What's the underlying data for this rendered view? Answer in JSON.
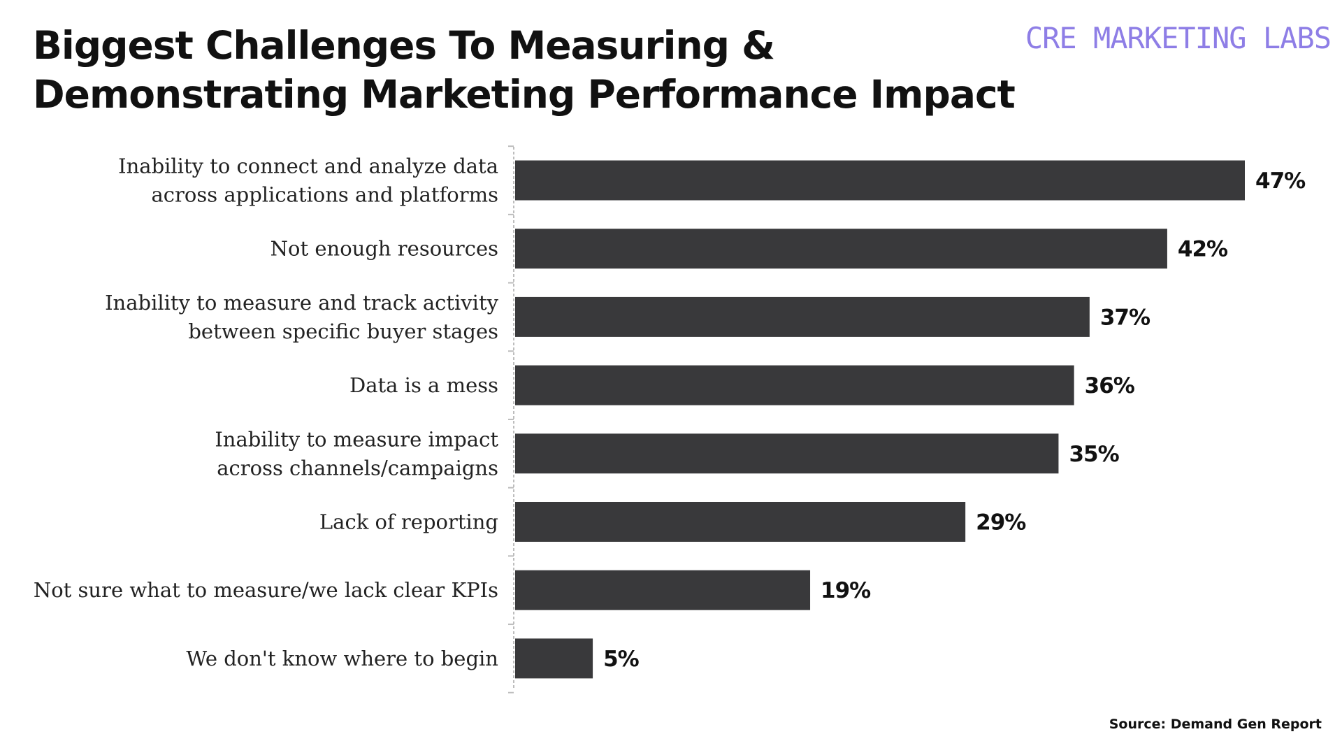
{
  "chart_data": {
    "type": "bar",
    "orientation": "horizontal",
    "title": [
      "Biggest Challenges To Measuring &",
      "Demonstrating Marketing Performance Impact"
    ],
    "categories": [
      [
        "Inability to connect and analyze data",
        "across applications and platforms"
      ],
      [
        "Not enough resources"
      ],
      [
        "Inability to measure and track activity",
        "between specific buyer stages"
      ],
      [
        "Data is a mess"
      ],
      [
        "Inability to measure impact",
        "across channels/campaigns"
      ],
      [
        "Lack of reporting"
      ],
      [
        "Not sure what to measure/we lack clear KPIs"
      ],
      [
        "We don't know where to begin"
      ]
    ],
    "values": [
      47,
      42,
      37,
      36,
      35,
      29,
      19,
      5
    ],
    "value_labels": [
      "47%",
      "42%",
      "37%",
      "36%",
      "35%",
      "29%",
      "19%",
      "5%"
    ],
    "xlabel": "",
    "ylabel": "",
    "xlim": [
      0,
      47
    ],
    "grid": false,
    "legend": "none",
    "bar_color": "#39393b"
  },
  "brand": "CRE MARKETING LABS",
  "brand_color": "#8e7ee6",
  "source": "Source: Demand Gen Report"
}
